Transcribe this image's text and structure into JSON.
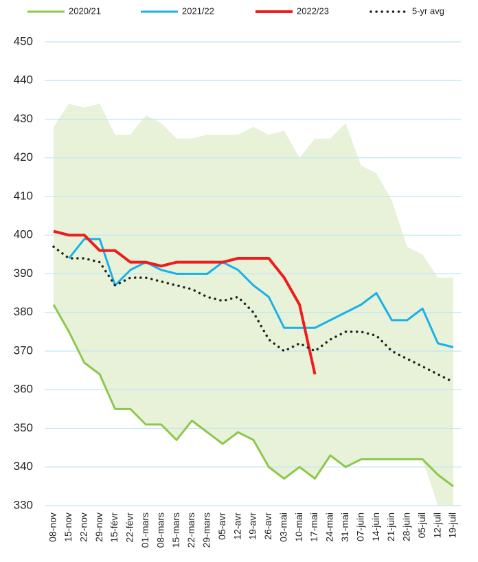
{
  "chart_data": {
    "type": "line",
    "categories": [
      "08-nov",
      "15-nov",
      "22-nov",
      "29-nov",
      "15-févr",
      "22-févr",
      "01-mars",
      "08-mars",
      "15-mars",
      "22-mars",
      "29-mars",
      "05-avr",
      "12-avr",
      "19-avr",
      "26-avr",
      "03-mai",
      "10-mai",
      "17-mai",
      "24-mai",
      "31-mai",
      "07-juin",
      "14-juin",
      "21-juin",
      "28-juin",
      "05-juil",
      "12-juil",
      "19-juil"
    ],
    "range": {
      "color": "#e7f2d9",
      "max": [
        428,
        434,
        433,
        434,
        426,
        426,
        431,
        429,
        425,
        425,
        426,
        426,
        426,
        428,
        426,
        427,
        420,
        425,
        425,
        429,
        418,
        416,
        409,
        397,
        395,
        389,
        389
      ],
      "min": [
        382,
        375,
        367,
        364,
        355,
        355,
        351,
        351,
        347,
        352,
        349,
        346,
        349,
        347,
        340,
        337,
        340,
        337,
        343,
        340,
        342,
        342,
        342,
        342,
        342,
        330,
        330
      ]
    },
    "series": [
      {
        "name": "2020/21",
        "color": "#8cc84b",
        "style": "solid",
        "values": [
          382,
          375,
          367,
          364,
          355,
          355,
          351,
          351,
          347,
          352,
          349,
          346,
          349,
          347,
          340,
          337,
          340,
          337,
          343,
          340,
          342,
          342,
          342,
          342,
          342,
          338,
          335
        ]
      },
      {
        "name": "2021/22",
        "color": "#1ab0e8",
        "style": "solid",
        "values": [
          null,
          394,
          399,
          399,
          387,
          391,
          393,
          391,
          390,
          390,
          390,
          393,
          391,
          387,
          384,
          376,
          376,
          376,
          378,
          380,
          382,
          385,
          378,
          378,
          381,
          372,
          371
        ]
      },
      {
        "name": "2022/23",
        "color": "#ee1c1c",
        "style": "thick",
        "values": [
          401,
          400,
          400,
          396,
          396,
          393,
          393,
          392,
          393,
          393,
          393,
          393,
          394,
          394,
          394,
          389,
          382,
          364,
          null,
          null,
          null,
          null,
          null,
          null,
          null,
          null,
          null
        ]
      },
      {
        "name": "5-yr avg",
        "color": "#222222",
        "style": "dotted",
        "values": [
          397,
          394,
          394,
          393,
          387,
          389,
          389,
          388,
          387,
          386,
          384,
          383,
          384,
          380,
          373,
          370,
          372,
          370,
          373,
          375,
          375,
          374,
          370,
          368,
          366,
          364,
          362
        ]
      }
    ],
    "ylim": [
      330,
      450
    ],
    "yticks": [
      330,
      340,
      350,
      360,
      370,
      380,
      390,
      400,
      410,
      420,
      430,
      440,
      450
    ],
    "grid": true
  }
}
